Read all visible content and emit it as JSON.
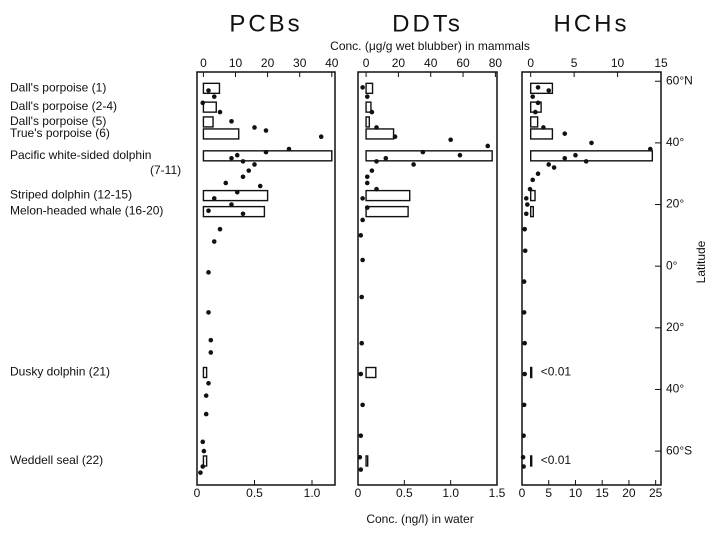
{
  "figure": {
    "axis_title_top": "Conc. (μg/g wet blubber) in mammals",
    "axis_title_bottom": "Conc. (ng/l) in water",
    "latitude_axis": {
      "label": "Latitude",
      "ylim": [
        -71,
        63
      ],
      "yticks": [
        {
          "value": 60,
          "label": "60°N"
        },
        {
          "value": 40,
          "label": "40°"
        },
        {
          "value": 20,
          "label": "20°"
        },
        {
          "value": 0,
          "label": "0°"
        },
        {
          "value": -20,
          "label": "20°"
        },
        {
          "value": -40,
          "label": "40°"
        },
        {
          "value": -60,
          "label": "60°S"
        }
      ]
    },
    "species": {
      "labels": [
        "Dall's porpoise (1)",
        "Dall's porpoise (2-4)",
        "Dall's porpoise (5)",
        "True's porpoise (6)",
        "Pacific white-sided dolphin\n(7-11)",
        "Striped dolphin (12-15)",
        "Melon-headed whale (16-20)",
        "Dusky dolphin (21)",
        "Weddell seal (22)"
      ],
      "latitude": [
        57.7,
        51.6,
        46.8,
        42.9,
        35.8,
        22.9,
        17.7,
        -34.5,
        -63.2
      ]
    }
  },
  "chart_data": [
    {
      "type": "bar",
      "title": "PCBs",
      "values": [
        5,
        4,
        3,
        11,
        40,
        20,
        19,
        1,
        1
      ],
      "xlim": [
        -2,
        41
      ],
      "xticks": [
        0,
        10,
        20,
        30,
        40
      ],
      "x2lim": [
        0,
        1.2
      ],
      "x2ticks": [
        0,
        0.5,
        {
          "value": 1,
          "label": "1.0"
        }
      ],
      "water": {
        "latitude": [
          57,
          55,
          53,
          50,
          47,
          45,
          44,
          42,
          38,
          37,
          36,
          35,
          34,
          33,
          31,
          29,
          27,
          26,
          24,
          22,
          20,
          18,
          17,
          12,
          8,
          -2,
          -15,
          -24,
          -28,
          -38,
          -42,
          -48,
          -57,
          -60,
          -65,
          -67
        ],
        "values": [
          0.1,
          0.15,
          0.05,
          0.2,
          0.3,
          0.5,
          0.6,
          1.08,
          0.8,
          0.6,
          0.35,
          0.3,
          0.4,
          0.5,
          0.45,
          0.4,
          0.25,
          0.55,
          0.35,
          0.15,
          0.3,
          0.1,
          0.4,
          0.2,
          0.15,
          0.1,
          0.1,
          0.12,
          0.12,
          0.1,
          0.08,
          0.08,
          0.05,
          0.06,
          0.05,
          0.03
        ]
      }
    },
    {
      "type": "bar",
      "title": "DDTs",
      "values": [
        4,
        3,
        2,
        17,
        78,
        27,
        26,
        6,
        1
      ],
      "xlim": [
        -5,
        81
      ],
      "xticks": [
        0,
        20,
        40,
        60,
        80
      ],
      "x2lim": [
        0,
        1.5
      ],
      "x2ticks": [
        0,
        0.5,
        {
          "value": 1,
          "label": "1.0"
        },
        1.5
      ],
      "water": {
        "latitude": [
          58,
          55,
          50,
          45,
          42,
          41,
          39,
          37,
          36,
          35,
          34,
          33,
          31,
          29,
          27,
          25,
          22,
          19,
          15,
          10,
          2,
          -10,
          -25,
          -35,
          -45,
          -55,
          -62,
          -66
        ],
        "values": [
          0.05,
          0.1,
          0.15,
          0.2,
          0.4,
          1.0,
          1.4,
          0.7,
          1.1,
          0.3,
          0.2,
          0.6,
          0.15,
          0.1,
          0.1,
          0.2,
          0.05,
          0.1,
          0.05,
          0.03,
          0.05,
          0.04,
          0.04,
          0.03,
          0.05,
          0.03,
          0.02,
          0.03
        ]
      }
    },
    {
      "type": "bar",
      "title": "HCHs",
      "values": [
        2.5,
        1.2,
        0.8,
        2.5,
        14,
        0.5,
        0.3,
        0.01,
        0.01
      ],
      "value_labels": [
        null,
        null,
        null,
        null,
        null,
        null,
        null,
        "<0.01",
        "<0.01"
      ],
      "xlim": [
        -1,
        15
      ],
      "xticks": [
        0,
        5,
        10,
        15
      ],
      "x2lim": [
        0,
        26
      ],
      "x2ticks": [
        0,
        5,
        10,
        15,
        20,
        25
      ],
      "water": {
        "latitude": [
          58,
          57,
          55,
          53,
          50,
          45,
          43,
          40,
          38,
          36,
          35,
          34,
          33,
          32,
          30,
          28,
          25,
          22,
          20,
          17,
          12,
          5,
          -5,
          -15,
          -25,
          -35,
          -45,
          -55,
          -62,
          -65
        ],
        "values": [
          3,
          5,
          2,
          3,
          2.5,
          4,
          8,
          13,
          24,
          10,
          8,
          12,
          5,
          6,
          3,
          2,
          1.5,
          0.8,
          1,
          0.8,
          0.5,
          0.6,
          0.4,
          0.4,
          0.5,
          0.5,
          0.4,
          0.3,
          0.2,
          0.3
        ]
      }
    }
  ]
}
